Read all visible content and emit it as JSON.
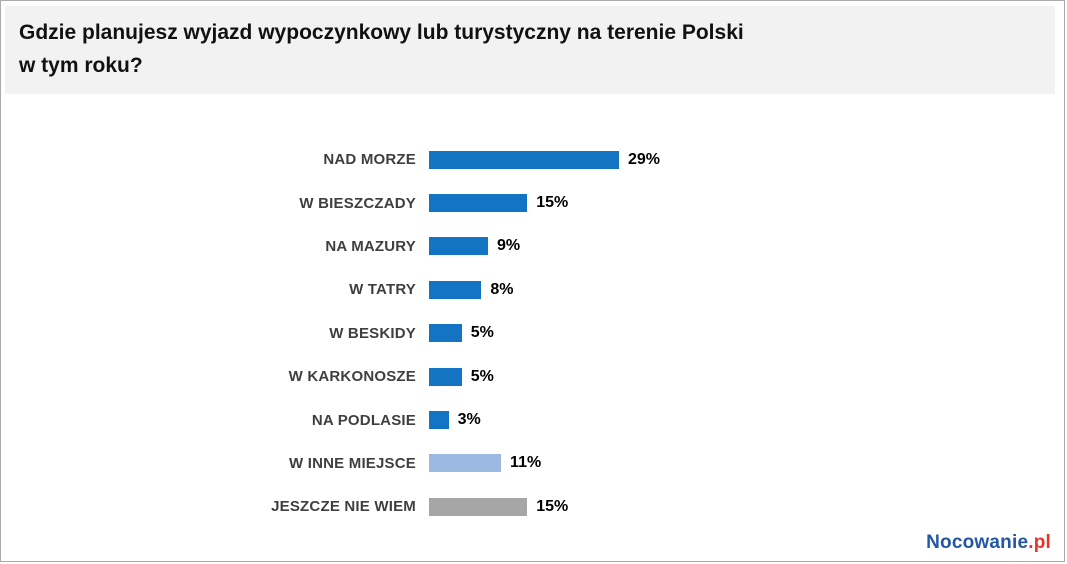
{
  "header": {
    "title_lines": [
      "Gdzie planujesz wyjazd wypoczynkowy lub turystyczny na terenie Polski",
      "w tym roku?"
    ]
  },
  "chart_data": {
    "type": "bar",
    "orientation": "horizontal",
    "title": "Gdzie planujesz wyjazd wypoczynkowy lub turystyczny na terenie Polski w tym roku?",
    "categories": [
      "NAD MORZE",
      "W BIESZCZADY",
      "NA MAZURY",
      "W TATRY",
      "W BESKIDY",
      "W KARKONOSZE",
      "NA PODLASIE",
      "W INNE MIEJSCE",
      "JESZCZE NIE WIEM"
    ],
    "values": [
      29,
      15,
      9,
      8,
      5,
      5,
      3,
      11,
      15
    ],
    "value_labels": [
      "29%",
      "15%",
      "9%",
      "8%",
      "5%",
      "5%",
      "3%",
      "11%",
      "15%"
    ],
    "units": "%",
    "bar_colors": [
      "#1274c2",
      "#1274c2",
      "#1274c2",
      "#1274c2",
      "#1274c2",
      "#1274c2",
      "#1274c2",
      "#9cb9e3",
      "#a6a6a6"
    ],
    "xlabel": "",
    "ylabel": "",
    "xlim": [
      0,
      30
    ],
    "grid": false,
    "legend": false,
    "data_labels": "outside-end"
  },
  "colors": {
    "bar_primary": "#1274c2",
    "bar_other_place": "#9cb9e3",
    "bar_dont_know": "#a6a6a6",
    "title_band_bg": "#f2f2f2",
    "category_label": "#3f3f3f",
    "value_label": "#000000",
    "frame_border": "#ababab",
    "logo_brand": "#2356a5",
    "logo_tld": "#e6332a"
  },
  "footer": {
    "brand": "Nocowanie",
    "tld": ".pl"
  }
}
